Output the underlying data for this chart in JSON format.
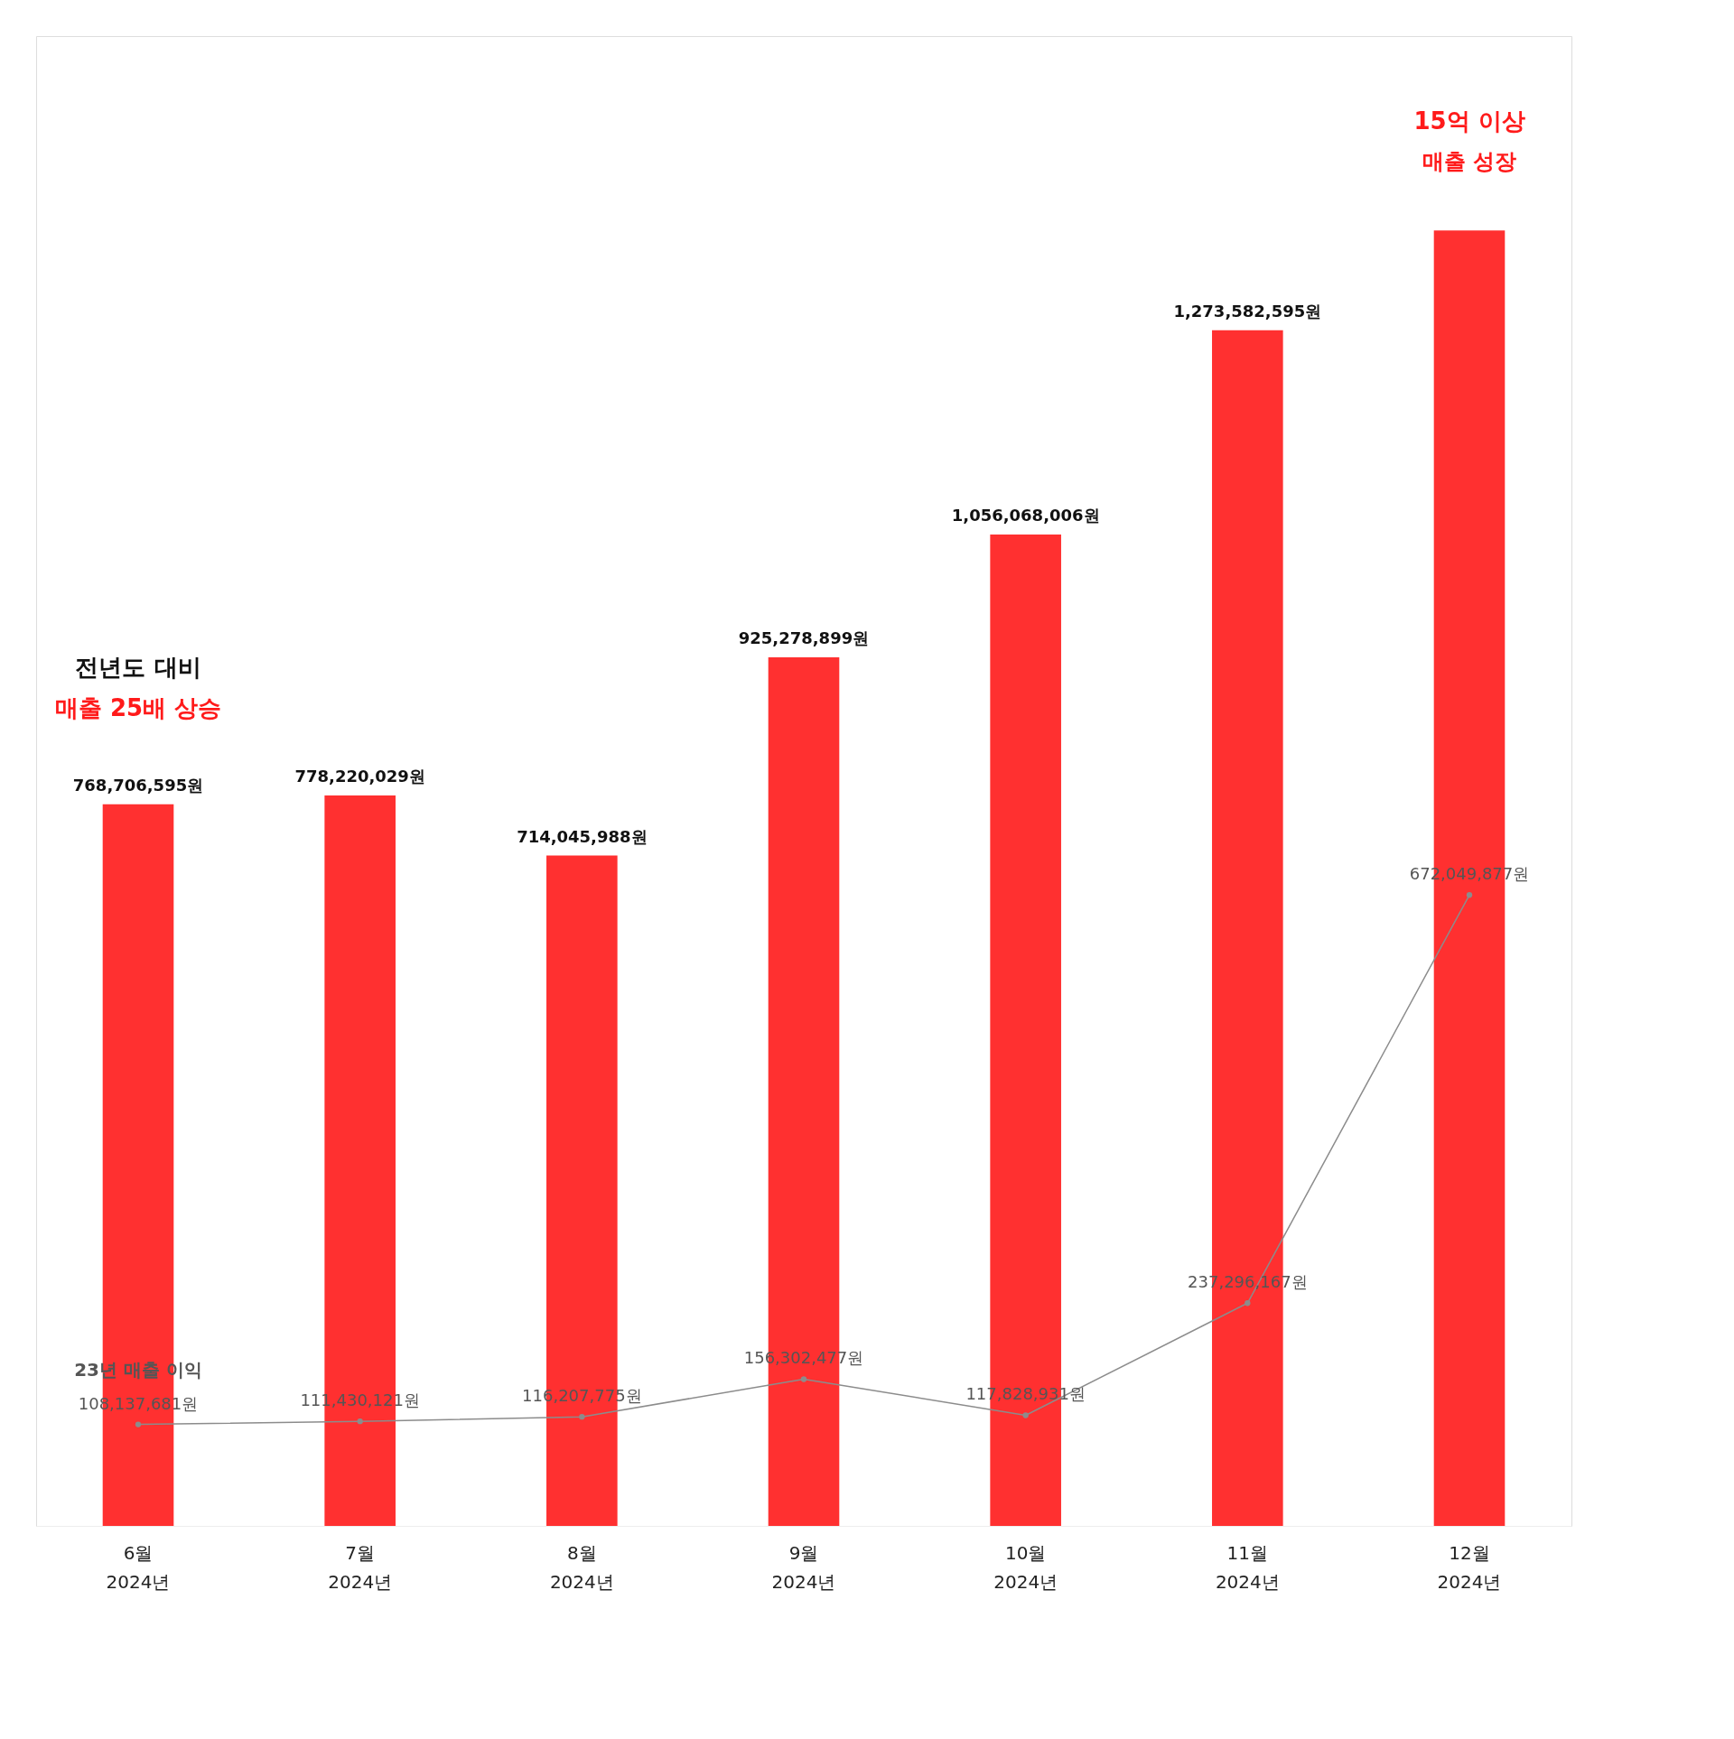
{
  "chart_data": {
    "type": "bar",
    "categories": [
      "6월\n2024년",
      "7월\n2024년",
      "8월\n2024년",
      "9월\n2024년",
      "10월\n2024년",
      "11월\n2024년",
      "12월\n2024년"
    ],
    "series": [
      {
        "color": "#ff3030",
        "values": [
          768706595,
          778220029,
          714045988,
          925278899,
          1056068006,
          1273582595,
          1380000000
        ],
        "value_labels": [
          "768,706,595원",
          "778,220,029원",
          "714,045,988원",
          "925,278,899원",
          "1,056,068,006원",
          "1,273,582,595원",
          null
        ]
      },
      {
        "type": "line",
        "name": "23년 매출 이익",
        "color": "#8c8c8c",
        "values": [
          108137681,
          111430121,
          116207775,
          156302477,
          117828931,
          237296167,
          672049877
        ],
        "value_labels": [
          "108,137,681원",
          "111,430,121원",
          "116,207,775원",
          "156,302,477원",
          "117,828,931원",
          "237,296,167원",
          "672,049,877원"
        ]
      }
    ],
    "annotations": [
      "전년도 대비",
      "매출 25배 상승",
      "15억 이상",
      "매출 성장"
    ],
    "marker": "circle",
    "grid": false
  }
}
